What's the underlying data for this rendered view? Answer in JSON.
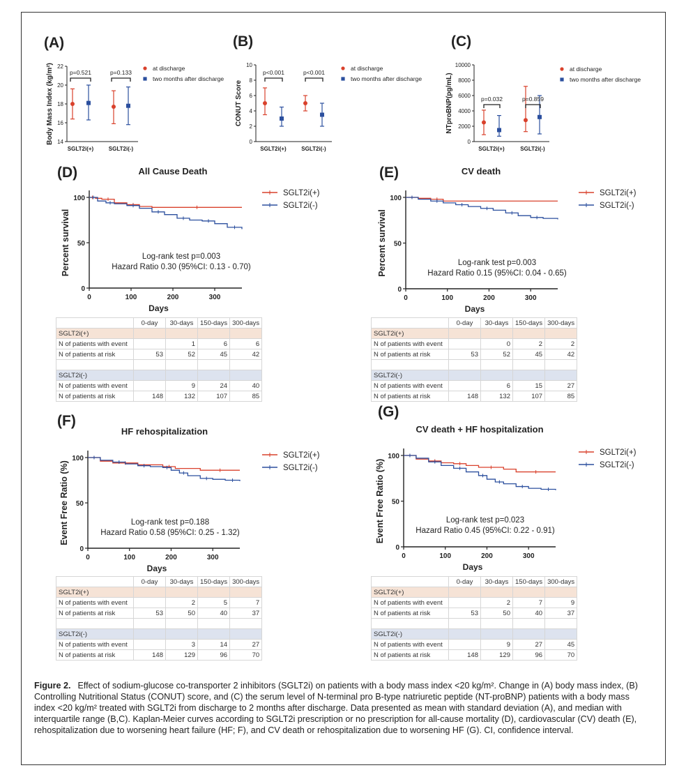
{
  "colors": {
    "plus": "#d9412c",
    "minus": "#2b4f9e",
    "axis": "#222222"
  },
  "chart_data": [
    {
      "id": "A",
      "type": "scatter",
      "panel_label": "(A)",
      "ylabel": "Body Mass Index (kg/m²)",
      "ylim": [
        14,
        22
      ],
      "yticks": [
        14,
        16,
        18,
        20,
        22
      ],
      "categories": [
        "SGLT2i(+)",
        "SGLT2i(-)"
      ],
      "legend": [
        "at discharge",
        "two months after discharge"
      ],
      "series": [
        {
          "name": "at discharge",
          "values": [
            18.0,
            17.7
          ],
          "low": [
            16.4,
            15.9
          ],
          "high": [
            19.6,
            19.4
          ]
        },
        {
          "name": "two months after discharge",
          "values": [
            18.1,
            17.8
          ],
          "low": [
            16.3,
            15.8
          ],
          "high": [
            20.0,
            19.8
          ]
        }
      ],
      "annotations": [
        "p=0.521",
        "p=0.133"
      ]
    },
    {
      "id": "B",
      "type": "scatter",
      "panel_label": "(B)",
      "ylabel": "CONUT Score",
      "ylim": [
        0,
        10
      ],
      "yticks": [
        0,
        2,
        4,
        6,
        8,
        10
      ],
      "categories": [
        "SGLT2i(+)",
        "SGLT2i(-)"
      ],
      "legend": [
        "at discharge",
        "two months after discharge"
      ],
      "series": [
        {
          "name": "at discharge",
          "values": [
            5,
            5
          ],
          "low": [
            3.5,
            4
          ],
          "high": [
            7,
            6
          ]
        },
        {
          "name": "two months after discharge",
          "values": [
            3,
            3.5
          ],
          "low": [
            2,
            2
          ],
          "high": [
            4.5,
            5
          ]
        }
      ],
      "annotations": [
        "p<0.001",
        "p<0.001"
      ]
    },
    {
      "id": "C",
      "type": "scatter",
      "panel_label": "(C)",
      "ylabel": "NTproBNP(pg/mL)",
      "ylim": [
        0,
        10000
      ],
      "yticks": [
        0,
        2000,
        4000,
        6000,
        8000,
        10000
      ],
      "categories": [
        "SGLT2i(+)",
        "SGLT2i(-)"
      ],
      "legend": [
        "at discharge",
        "two months after discharge"
      ],
      "series": [
        {
          "name": "at discharge",
          "values": [
            2500,
            2800
          ],
          "low": [
            900,
            1300
          ],
          "high": [
            4100,
            7200
          ]
        },
        {
          "name": "two months after discharge",
          "values": [
            1500,
            3200
          ],
          "low": [
            700,
            1000
          ],
          "high": [
            3400,
            6000
          ]
        }
      ],
      "annotations": [
        "p=0.032",
        "p=0.859"
      ]
    },
    {
      "id": "D",
      "type": "line",
      "panel_label": "(D)",
      "title": "All Cause Death",
      "xlabel": "Days",
      "ylabel": "Percent survival",
      "xlim": [
        0,
        365
      ],
      "ylim": [
        0,
        100
      ],
      "xticks": [
        0,
        100,
        200,
        300
      ],
      "yticks": [
        0,
        50,
        100
      ],
      "annotation": [
        "Log-rank test p=0.003",
        "Hazard Ratio 0.30 (95%CI: 0.13 - 0.70)"
      ],
      "series": [
        {
          "name": "SGLT2i(+)",
          "x": [
            0,
            15,
            30,
            60,
            90,
            120,
            150,
            365
          ],
          "y": [
            100,
            99,
            98,
            94,
            92,
            90,
            89,
            89
          ]
        },
        {
          "name": "SGLT2i(-)",
          "x": [
            0,
            20,
            40,
            60,
            90,
            120,
            150,
            180,
            210,
            240,
            270,
            300,
            330,
            365
          ],
          "y": [
            100,
            96,
            94,
            93,
            91,
            88,
            84,
            81,
            77,
            75,
            74,
            71,
            67,
            65
          ]
        }
      ]
    },
    {
      "id": "E",
      "type": "line",
      "panel_label": "(E)",
      "title": "CV death",
      "xlabel": "Days",
      "ylabel": "Percent survival",
      "xlim": [
        0,
        365
      ],
      "ylim": [
        0,
        100
      ],
      "xticks": [
        0,
        100,
        200,
        300
      ],
      "yticks": [
        0,
        50,
        100
      ],
      "annotation": [
        "Log-rank test p=0.003",
        "Hazard Ratio 0.15 (95%CI: 0.04 - 0.65)"
      ],
      "series": [
        {
          "name": "SGLT2i(+)",
          "x": [
            0,
            30,
            60,
            90,
            365
          ],
          "y": [
            100,
            99,
            98,
            96,
            96
          ]
        },
        {
          "name": "SGLT2i(-)",
          "x": [
            0,
            30,
            60,
            90,
            120,
            150,
            180,
            210,
            240,
            270,
            300,
            330,
            365
          ],
          "y": [
            100,
            98,
            96,
            94,
            92,
            90,
            88,
            86,
            83,
            80,
            78,
            77,
            76
          ]
        }
      ]
    },
    {
      "id": "F",
      "type": "line",
      "panel_label": "(F)",
      "title": "HF rehospitalization",
      "xlabel": "Days",
      "ylabel": "Event Free Ratio (%)",
      "xlim": [
        0,
        365
      ],
      "ylim": [
        0,
        100
      ],
      "xticks": [
        0,
        100,
        200,
        300
      ],
      "yticks": [
        0,
        50,
        100
      ],
      "annotation": [
        "Log-rank test p=0.188",
        "Hazard Ratio 0.58 (95%CI: 0.25 - 1.32)"
      ],
      "series": [
        {
          "name": "SGLT2i(+)",
          "x": [
            0,
            30,
            60,
            120,
            180,
            210,
            270,
            365
          ],
          "y": [
            100,
            96,
            94,
            92,
            90,
            88,
            86,
            86
          ]
        },
        {
          "name": "SGLT2i(-)",
          "x": [
            0,
            30,
            60,
            90,
            120,
            150,
            180,
            200,
            220,
            240,
            270,
            300,
            330,
            365
          ],
          "y": [
            100,
            97,
            95,
            93,
            91,
            90,
            89,
            86,
            83,
            80,
            77,
            76,
            75,
            74
          ]
        }
      ]
    },
    {
      "id": "G",
      "type": "line",
      "panel_label": "(G)",
      "title": "CV death + HF hospitalization",
      "xlabel": "Days",
      "ylabel": "Event Free Ratio (%)",
      "xlim": [
        0,
        365
      ],
      "ylim": [
        0,
        100
      ],
      "xticks": [
        0,
        100,
        200,
        300
      ],
      "yticks": [
        0,
        50,
        100
      ],
      "annotation": [
        "Log-rank test p=0.023",
        "Hazard Ratio 0.45 (95%CI: 0.22 - 0.91)"
      ],
      "series": [
        {
          "name": "SGLT2i(+)",
          "x": [
            0,
            30,
            60,
            90,
            120,
            150,
            180,
            240,
            270,
            365
          ],
          "y": [
            100,
            96,
            94,
            92,
            91,
            89,
            87,
            85,
            82,
            82
          ]
        },
        {
          "name": "SGLT2i(-)",
          "x": [
            0,
            30,
            60,
            90,
            120,
            150,
            180,
            200,
            220,
            240,
            270,
            300,
            330,
            365
          ],
          "y": [
            100,
            97,
            93,
            89,
            86,
            82,
            78,
            74,
            71,
            69,
            66,
            64,
            63,
            62
          ]
        }
      ]
    }
  ],
  "risk_tables": [
    {
      "id": "D",
      "header": [
        "",
        "0-day",
        "30-days",
        "150-days",
        "300-days"
      ],
      "groups": [
        {
          "name": "SGLT2i(+)",
          "rows": [
            {
              "label": "N of patients with event",
              "values": [
                "",
                "1",
                "6",
                "6"
              ]
            },
            {
              "label": "N of patients at risk",
              "values": [
                "53",
                "52",
                "45",
                "42"
              ]
            }
          ]
        },
        {
          "name": "SGLT2i(-)",
          "rows": [
            {
              "label": "N of patients with event",
              "values": [
                "",
                "9",
                "24",
                "40"
              ]
            },
            {
              "label": "N of patients at risk",
              "values": [
                "148",
                "132",
                "107",
                "85"
              ]
            }
          ]
        }
      ]
    },
    {
      "id": "E",
      "header": [
        "",
        "0-day",
        "30-days",
        "150-days",
        "300-days"
      ],
      "groups": [
        {
          "name": "SGLT2i(+)",
          "rows": [
            {
              "label": "N of patients with event",
              "values": [
                "",
                "0",
                "2",
                "2"
              ]
            },
            {
              "label": "N of patients at risk",
              "values": [
                "53",
                "52",
                "45",
                "42"
              ]
            }
          ]
        },
        {
          "name": "SGLT2i(-)",
          "rows": [
            {
              "label": "N of patients with event",
              "values": [
                "",
                "6",
                "15",
                "27"
              ]
            },
            {
              "label": "N of patients at risk",
              "values": [
                "148",
                "132",
                "107",
                "85"
              ]
            }
          ]
        }
      ]
    },
    {
      "id": "F",
      "header": [
        "",
        "0-day",
        "30-days",
        "150-days",
        "300-days"
      ],
      "groups": [
        {
          "name": "SGLT2i(+)",
          "rows": [
            {
              "label": "N of patients with event",
              "values": [
                "",
                "2",
                "5",
                "7"
              ]
            },
            {
              "label": "N of patients at risk",
              "values": [
                "53",
                "50",
                "40",
                "37"
              ]
            }
          ]
        },
        {
          "name": "SGLT2i(-)",
          "rows": [
            {
              "label": "N of patients with event",
              "values": [
                "",
                "3",
                "14",
                "27"
              ]
            },
            {
              "label": "N of patients at risk",
              "values": [
                "148",
                "129",
                "96",
                "70"
              ]
            }
          ]
        }
      ]
    },
    {
      "id": "G",
      "header": [
        "",
        "0-day",
        "30-days",
        "150-days",
        "300-days"
      ],
      "groups": [
        {
          "name": "SGLT2i(+)",
          "rows": [
            {
              "label": "N of patients with event",
              "values": [
                "",
                "2",
                "7",
                "9"
              ]
            },
            {
              "label": "N of patients at risk",
              "values": [
                "53",
                "50",
                "40",
                "37"
              ]
            }
          ]
        },
        {
          "name": "SGLT2i(-)",
          "rows": [
            {
              "label": "N of patients with event",
              "values": [
                "",
                "9",
                "27",
                "45"
              ]
            },
            {
              "label": "N of patients at risk",
              "values": [
                "148",
                "129",
                "96",
                "70"
              ]
            }
          ]
        }
      ]
    }
  ],
  "caption": {
    "label": "Figure 2.",
    "text": "Effect of sodium-glucose co-transporter 2 inhibitors (SGLT2i) on patients with a body mass index <20 kg/m². Change in (A) body mass index, (B) Controlling Nutritional Status (CONUT) score, and (C) the serum level of N-terminal pro B-type natriuretic peptide (NT-proBNP) patients with a body mass index <20 kg/m² treated with SGLT2i from discharge to 2 months after discharge. Data presented as mean with standard deviation (A), and median with interquartile range (B,C). Kaplan-Meier curves according to SGLT2i prescription or no prescription for all-cause mortality (D), cardiovascular (CV) death (E), rehospitalization due to worsening heart failure (HF; F), and CV death or rehospitalization due to worsening HF (G). CI, confidence interval."
  }
}
